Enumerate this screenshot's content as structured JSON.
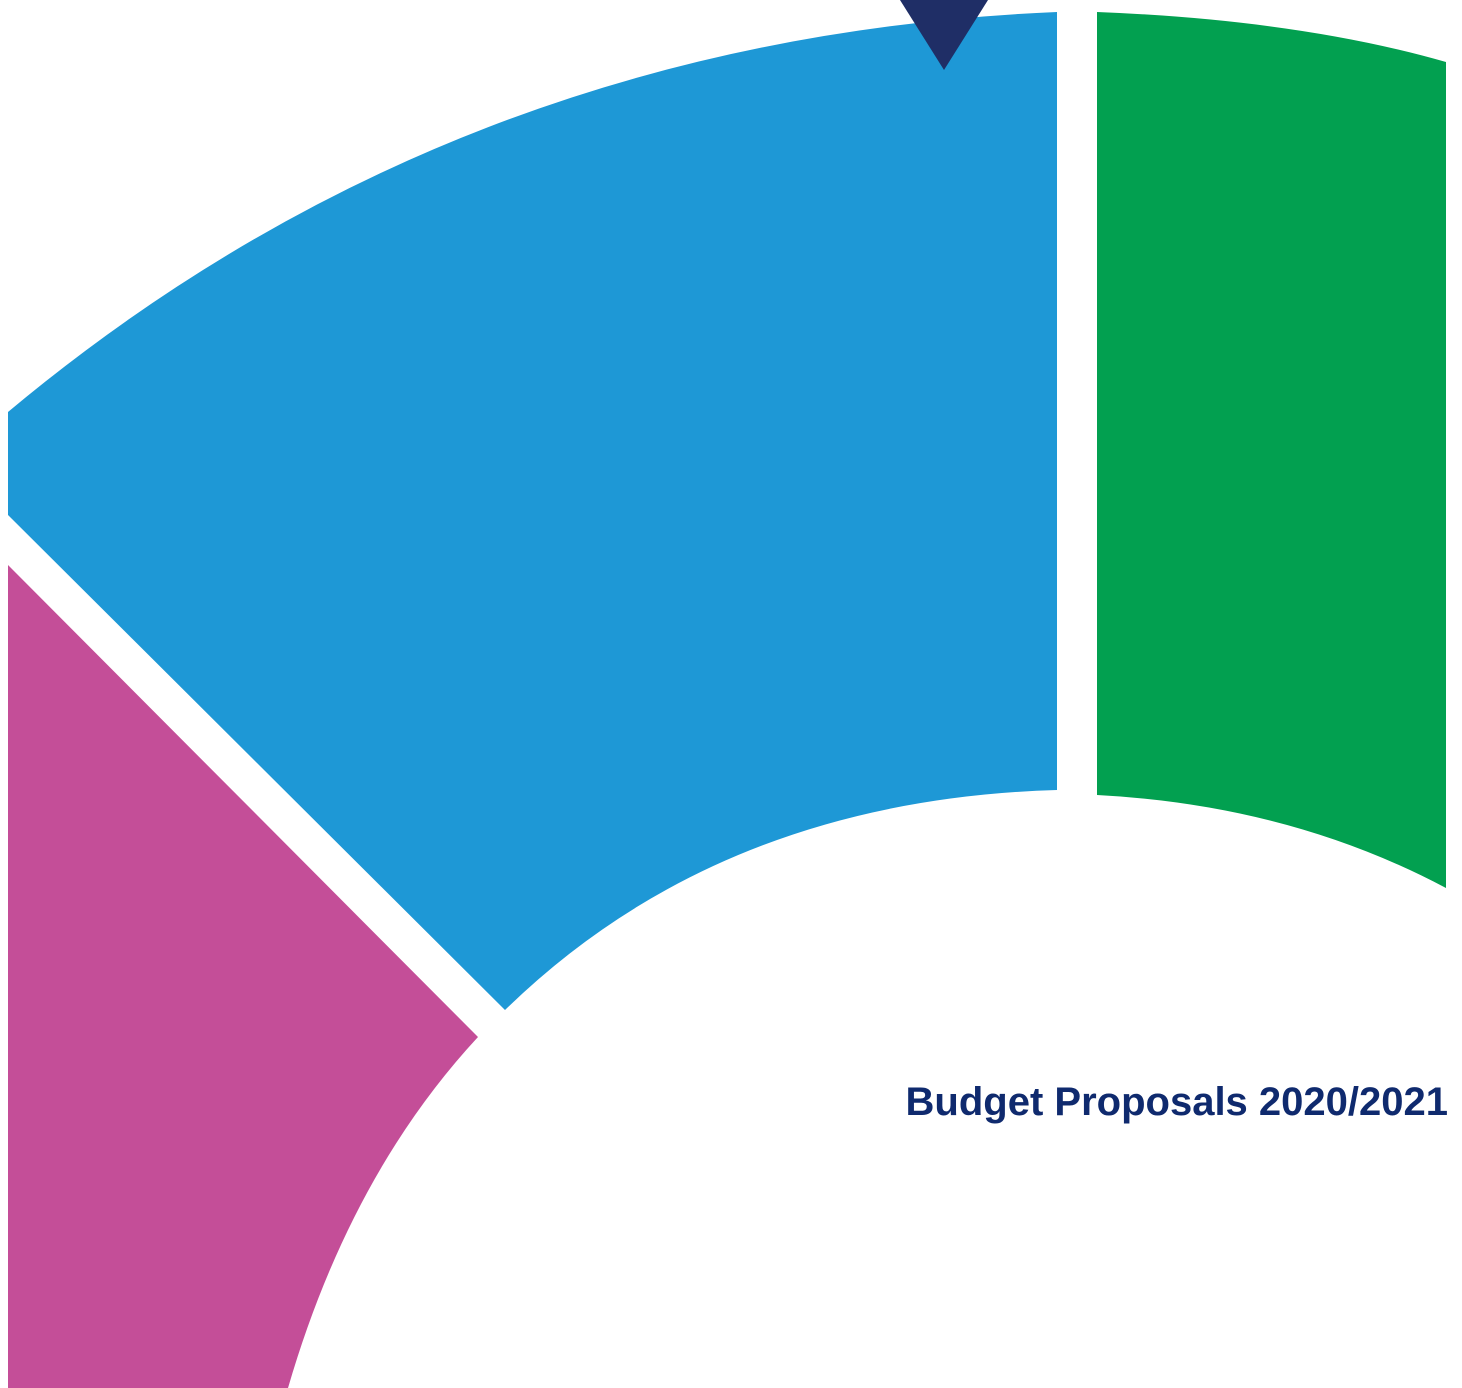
{
  "cover": {
    "title": "Budget Proposals 2020/2021",
    "title_color": "#0f2a6e"
  },
  "graphic": {
    "segments": [
      {
        "name": "blue-ring-segment",
        "color": "#1e98d6"
      },
      {
        "name": "green-ring-segment",
        "color": "#02a050"
      },
      {
        "name": "magenta-ring-segment",
        "color": "#c44e98"
      }
    ],
    "marker": {
      "name": "pointer-marker",
      "color": "#1f2e66"
    }
  }
}
